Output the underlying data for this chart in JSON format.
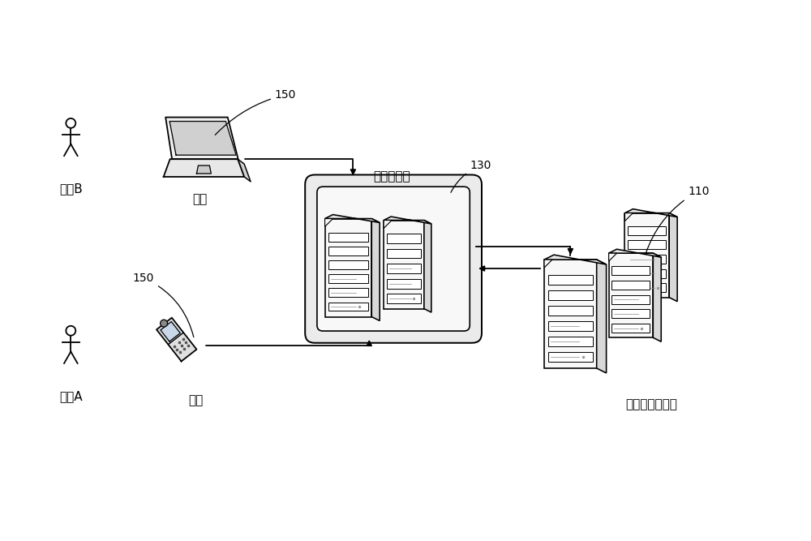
{
  "bg_color": "#ffffff",
  "line_color": "#000000",
  "fig_w": 10.0,
  "fig_h": 6.67,
  "dpi": 100,
  "labels": {
    "user_b": "用户B",
    "user_a": "用户A",
    "terminal": "终端",
    "cache_server": "缓存服务器",
    "online_server": "联机应用服务器",
    "n150a": "150",
    "n150b": "150",
    "n130": "130",
    "n110": "110"
  },
  "font_size": 11,
  "font_size_label": 10,
  "font_family": "DejaVu Sans"
}
